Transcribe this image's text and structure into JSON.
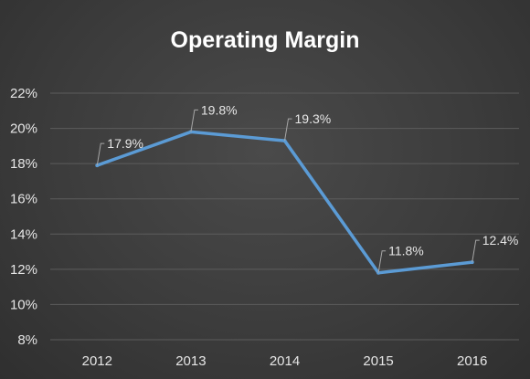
{
  "chart_data": {
    "type": "line",
    "title": "Operating Margin",
    "xlabel": "",
    "ylabel": "",
    "categories": [
      "2012",
      "2013",
      "2014",
      "2015",
      "2016"
    ],
    "series": [
      {
        "values": [
          17.9,
          19.8,
          19.3,
          11.8,
          12.4
        ],
        "data_labels": [
          "17.9%",
          "19.8%",
          "19.3%",
          "11.8%",
          "12.4%"
        ],
        "color": "#5b9bd5"
      }
    ],
    "ylim": [
      8,
      22
    ],
    "yticks": [
      8,
      10,
      12,
      14,
      16,
      18,
      20,
      22
    ],
    "ytick_labels": [
      "8%",
      "10%",
      "12%",
      "14%",
      "16%",
      "18%",
      "20%",
      "22%"
    ],
    "grid": true,
    "legend": "none"
  }
}
